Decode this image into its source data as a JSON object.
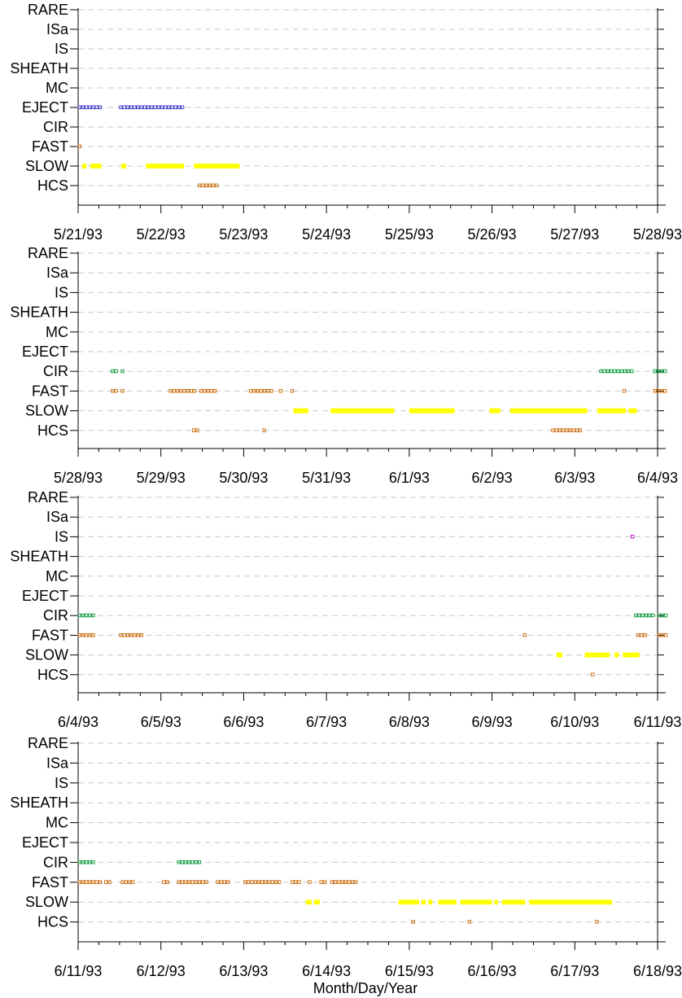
{
  "chart_data": {
    "type": "scatter",
    "xlabel": "Month/Day/Year",
    "categories": [
      "RARE",
      "ISa",
      "IS",
      "SHEATH",
      "MC",
      "EJECT",
      "CIR",
      "FAST",
      "SLOW",
      "HCS"
    ],
    "colors": {
      "EJECT": "#3333cc",
      "FAST": "#cc6600",
      "HCS": "#cc6600",
      "SLOW": "#ffff00",
      "CIR": "#009933",
      "IS": "#cc00cc"
    },
    "grid": "dashed horizontal",
    "panels": [
      {
        "xlim_days": [
          0,
          7
        ],
        "x_tick_labels": [
          "5/21/93",
          "5/22/93",
          "5/23/93",
          "5/24/93",
          "5/25/93",
          "5/26/93",
          "5/27/93",
          "5/28/93"
        ],
        "series": [
          {
            "name": "EJECT",
            "segments": [
              [
                0.0,
                0.28
              ],
              [
                0.5,
                1.3
              ]
            ]
          },
          {
            "name": "FAST",
            "segments": [
              [
                0.0,
                0.06
              ]
            ]
          },
          {
            "name": "SLOW",
            "segments": [
              [
                0.05,
                0.1
              ],
              [
                0.15,
                0.28
              ],
              [
                0.52,
                0.58
              ],
              [
                0.82,
                1.28
              ],
              [
                1.4,
                1.95
              ]
            ]
          },
          {
            "name": "HCS",
            "segments": [
              [
                1.45,
                1.7
              ]
            ]
          }
        ]
      },
      {
        "xlim_days": [
          0,
          7
        ],
        "x_tick_labels": [
          "5/28/93",
          "5/29/93",
          "5/30/93",
          "5/31/93",
          "6/1/93",
          "6/2/93",
          "6/3/93",
          "6/4/93"
        ],
        "series": [
          {
            "name": "CIR",
            "segments": [
              [
                0.4,
                0.48
              ],
              [
                0.52,
                0.56
              ],
              [
                6.3,
                6.72
              ],
              [
                6.95,
                7.12
              ]
            ]
          },
          {
            "name": "FAST",
            "segments": [
              [
                0.4,
                0.48
              ],
              [
                0.52,
                0.56
              ],
              [
                1.1,
                1.42
              ],
              [
                1.47,
                1.67
              ],
              [
                2.07,
                2.35
              ],
              [
                2.43,
                2.47
              ],
              [
                2.57,
                2.61
              ],
              [
                6.58,
                6.62
              ],
              [
                6.95,
                7.12
              ]
            ]
          },
          {
            "name": "SLOW",
            "segments": [
              [
                2.6,
                2.78
              ],
              [
                3.05,
                3.82
              ],
              [
                4.0,
                4.55
              ],
              [
                4.97,
                5.1
              ],
              [
                5.22,
                6.15
              ],
              [
                6.27,
                6.62
              ],
              [
                6.65,
                6.75
              ]
            ]
          },
          {
            "name": "HCS",
            "segments": [
              [
                1.38,
                1.46
              ],
              [
                2.23,
                2.27
              ],
              [
                5.72,
                6.1
              ]
            ]
          }
        ]
      },
      {
        "xlim_days": [
          0,
          7
        ],
        "x_tick_labels": [
          "6/4/93",
          "6/5/93",
          "6/6/93",
          "6/7/93",
          "6/8/93",
          "6/9/93",
          "6/10/93",
          "6/11/93"
        ],
        "series": [
          {
            "name": "IS",
            "segments": [
              [
                6.68,
                6.72
              ]
            ]
          },
          {
            "name": "CIR",
            "segments": [
              [
                0.0,
                0.22
              ],
              [
                6.72,
                6.95
              ],
              [
                7.0,
                7.12
              ]
            ]
          },
          {
            "name": "FAST",
            "segments": [
              [
                0.0,
                0.22
              ],
              [
                0.5,
                0.78
              ],
              [
                5.38,
                5.42
              ],
              [
                6.75,
                6.88
              ],
              [
                7.0,
                7.12
              ]
            ]
          },
          {
            "name": "SLOW",
            "segments": [
              [
                5.78,
                5.85
              ],
              [
                6.12,
                6.42
              ],
              [
                6.48,
                6.53
              ],
              [
                6.58,
                6.78
              ]
            ]
          },
          {
            "name": "HCS",
            "segments": [
              [
                6.2,
                6.24
              ]
            ]
          }
        ]
      },
      {
        "xlim_days": [
          0,
          7
        ],
        "x_tick_labels": [
          "6/11/93",
          "6/12/93",
          "6/13/93",
          "6/14/93",
          "6/15/93",
          "6/16/93",
          "6/17/93",
          "6/18/93"
        ],
        "series": [
          {
            "name": "CIR",
            "segments": [
              [
                0.0,
                0.22
              ],
              [
                1.2,
                1.47
              ]
            ]
          },
          {
            "name": "FAST",
            "segments": [
              [
                0.0,
                0.27
              ],
              [
                0.32,
                0.4
              ],
              [
                0.52,
                0.68
              ],
              [
                1.02,
                1.1
              ],
              [
                1.2,
                1.57
              ],
              [
                1.67,
                1.82
              ],
              [
                2.0,
                2.45
              ],
              [
                2.57,
                2.7
              ],
              [
                2.78,
                2.82
              ],
              [
                2.92,
                3.0
              ],
              [
                3.05,
                3.38
              ]
            ]
          },
          {
            "name": "SLOW",
            "segments": [
              [
                2.75,
                2.82
              ],
              [
                2.85,
                2.92
              ],
              [
                3.87,
                4.12
              ],
              [
                4.15,
                4.2
              ],
              [
                4.23,
                4.28
              ],
              [
                4.35,
                4.57
              ],
              [
                4.62,
                5.0
              ],
              [
                5.03,
                5.07
              ],
              [
                5.12,
                5.4
              ],
              [
                5.45,
                6.45
              ]
            ]
          },
          {
            "name": "HCS",
            "segments": [
              [
                4.03,
                4.07
              ],
              [
                4.71,
                4.75
              ],
              [
                6.25,
                6.29
              ]
            ]
          }
        ]
      }
    ]
  }
}
